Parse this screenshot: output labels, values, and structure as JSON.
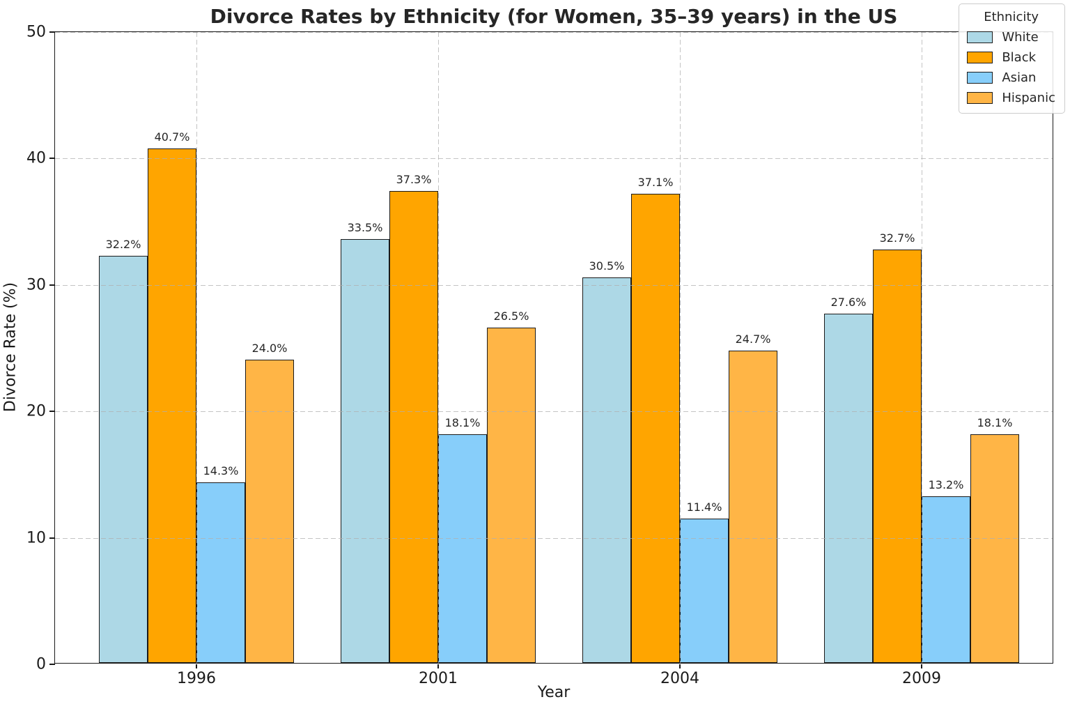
{
  "chart_data": {
    "type": "bar",
    "title": "Divorce Rates by Ethnicity (for Women, 35–39 years) in the US",
    "xlabel": "Year",
    "ylabel": "Divorce Rate (%)",
    "categories": [
      "1996",
      "2001",
      "2004",
      "2009"
    ],
    "series": [
      {
        "name": "White",
        "color": "#ADD8E6",
        "values": [
          32.2,
          33.5,
          30.5,
          27.6
        ]
      },
      {
        "name": "Black",
        "color": "#FFA500",
        "values": [
          40.7,
          37.3,
          37.1,
          32.7
        ]
      },
      {
        "name": "Asian",
        "color": "#87CEFA",
        "values": [
          14.3,
          18.1,
          11.4,
          13.2
        ]
      },
      {
        "name": "Hispanic",
        "color": "#FFB546",
        "values": [
          24.0,
          26.5,
          24.7,
          18.1
        ]
      }
    ],
    "value_labels": [
      [
        "32.2%",
        "33.5%",
        "30.5%",
        "27.6%"
      ],
      [
        "40.7%",
        "37.3%",
        "37.1%",
        "32.7%"
      ],
      [
        "14.3%",
        "18.1%",
        "11.4%",
        "13.2%"
      ],
      [
        "24.0%",
        "26.5%",
        "24.7%",
        "18.1%"
      ]
    ],
    "ylim": [
      0,
      50
    ],
    "yticks": [
      0,
      10,
      20,
      30,
      40,
      50
    ],
    "grid": true,
    "grid_style": "dashed",
    "grid_color": "#b0b0b0",
    "legend_title": "Ethnicity",
    "legend_position": "upper right",
    "bar_edge_color": "#1a1a1a",
    "background_color": "#ffffff"
  }
}
